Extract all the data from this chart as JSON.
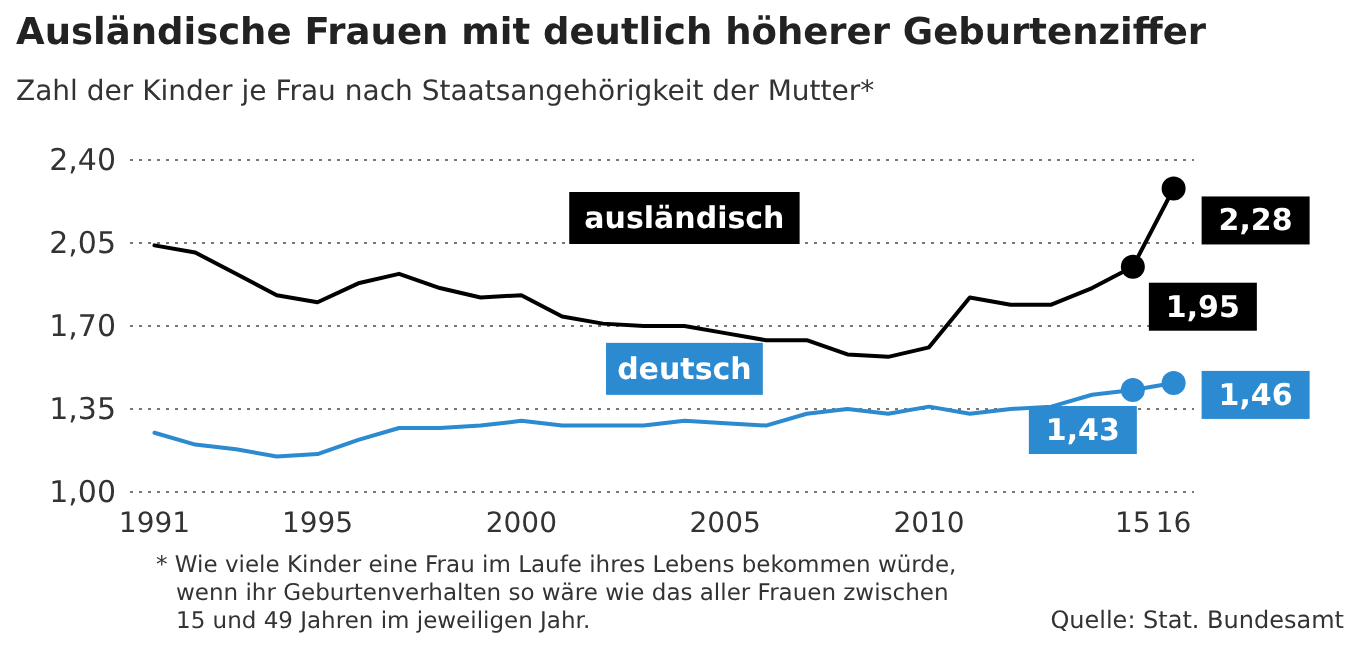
{
  "chart_data": {
    "type": "line",
    "title": "Ausländische Frauen mit deutlich höherer Geburtenziffer",
    "subtitle": "Zahl der Kinder je Frau nach Staatsangehörigkeit der Mutter*",
    "x": [
      1991,
      1992,
      1993,
      1994,
      1995,
      1996,
      1997,
      1998,
      1999,
      2000,
      2001,
      2002,
      2003,
      2004,
      2005,
      2006,
      2007,
      2008,
      2009,
      2010,
      2011,
      2012,
      2013,
      2014,
      2015,
      2016
    ],
    "series": [
      {
        "name": "ausländisch",
        "color": "#000000",
        "values": [
          2.04,
          2.01,
          1.92,
          1.83,
          1.8,
          1.88,
          1.92,
          1.86,
          1.82,
          1.83,
          1.74,
          1.71,
          1.7,
          1.7,
          1.67,
          1.64,
          1.64,
          1.58,
          1.57,
          1.61,
          1.82,
          1.79,
          1.79,
          1.86,
          1.95,
          2.28
        ],
        "value_labels": [
          null,
          null,
          null,
          null,
          null,
          null,
          null,
          null,
          null,
          null,
          null,
          null,
          null,
          null,
          null,
          null,
          null,
          null,
          null,
          null,
          null,
          null,
          null,
          null,
          "1,95",
          "2,28"
        ]
      },
      {
        "name": "deutsch",
        "color": "#2b8ad0",
        "values": [
          1.25,
          1.2,
          1.18,
          1.15,
          1.16,
          1.22,
          1.27,
          1.27,
          1.28,
          1.3,
          1.28,
          1.28,
          1.28,
          1.3,
          1.29,
          1.28,
          1.33,
          1.35,
          1.33,
          1.36,
          1.33,
          1.35,
          1.36,
          1.41,
          1.43,
          1.46
        ],
        "value_labels": [
          null,
          null,
          null,
          null,
          null,
          null,
          null,
          null,
          null,
          null,
          null,
          null,
          null,
          null,
          null,
          null,
          null,
          null,
          null,
          null,
          null,
          null,
          null,
          null,
          "1,43",
          "1,46"
        ]
      }
    ],
    "xlim": [
      1990.4,
      2016.5
    ],
    "xticks": [
      1991,
      1995,
      2000,
      2005,
      2010,
      {
        "value": 2015,
        "label": "15"
      },
      {
        "value": 2016,
        "label": "16"
      }
    ],
    "ylim": [
      1.0,
      2.4
    ],
    "yticks": [
      {
        "value": 1.0,
        "label": "1,00"
      },
      {
        "value": 1.35,
        "label": "1,35"
      },
      {
        "value": 1.7,
        "label": "1,70"
      },
      {
        "value": 2.05,
        "label": "2,05"
      },
      {
        "value": 2.4,
        "label": "2,40"
      }
    ],
    "grid": "y",
    "line_style": "solid",
    "annotations": [
      "* Wie viele Kinder eine Frau im Laufe ihres Lebens bekommen würde, wenn ihr Geburtenverhalten so wäre wie das aller Frauen zwischen 15 und 49 Jahren im jeweiligen Jahr.",
      "Quelle: Stat. Bundesamt"
    ]
  }
}
